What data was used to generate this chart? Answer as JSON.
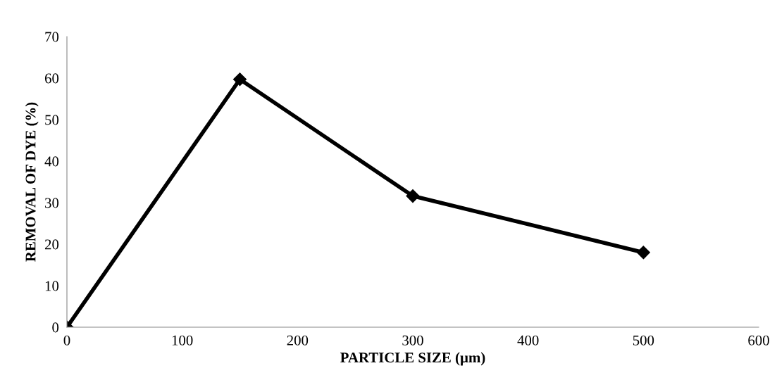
{
  "chart_data": {
    "type": "line",
    "xlabel": "PARTICLE SIZE (µm)",
    "ylabel": "REMOVAL OF DYE (%)",
    "x": [
      0,
      150,
      300,
      500
    ],
    "series": [
      {
        "color": "#000000",
        "values": [
          0,
          59.7,
          31.6,
          18.0
        ]
      }
    ],
    "xlim": [
      0,
      600
    ],
    "xticks": [
      0,
      100,
      200,
      300,
      400,
      500,
      600
    ],
    "ylim": [
      0,
      70
    ],
    "yticks": [
      0,
      10,
      20,
      30,
      40,
      50,
      60,
      70
    ],
    "marker": "diamond",
    "line_style": "solid"
  }
}
